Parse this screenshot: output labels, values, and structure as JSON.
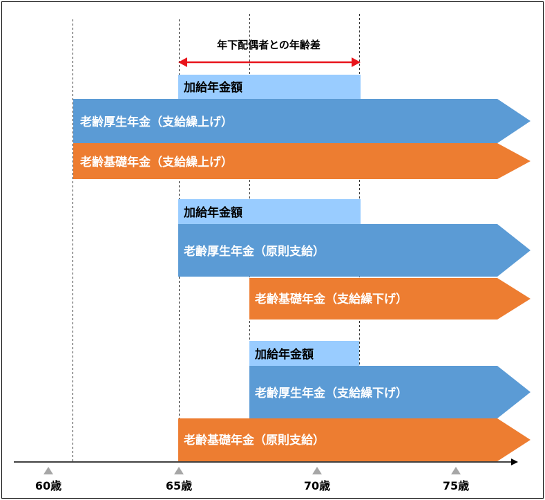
{
  "header": {
    "age_gap_label": "年下配偶者との年齢差"
  },
  "groups": [
    {
      "kyufu_label": "加給年金額",
      "kosei_label": "老齢厚生年金（支給繰上げ）",
      "kiso_label": "老齢基礎年金（支給繰上げ）"
    },
    {
      "kyufu_label": "加給年金額",
      "kosei_label": "老齢厚生年金（原則支給）",
      "kiso_label": "老齢基礎年金（支給繰下げ）"
    },
    {
      "kyufu_label": "加給年金額",
      "kosei_label": "老齢厚生年金（支給繰下げ）",
      "kiso_label": "老齢基礎年金（原則支給）"
    }
  ],
  "axis": {
    "ticks": [
      "60歳",
      "65歳",
      "70歳",
      "75歳"
    ]
  },
  "colors": {
    "kyufu": "#99CCFF",
    "kosei": "#5B9BD5",
    "kiso": "#ED7D31",
    "arrow": "#E8141B",
    "tick_marker": "#A6A6A6"
  }
}
